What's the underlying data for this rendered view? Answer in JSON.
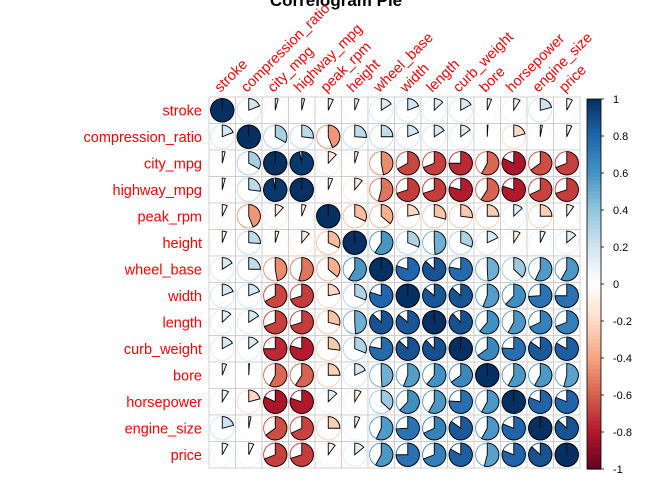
{
  "chart_data": {
    "type": "heatmap",
    "style": "pie",
    "title": "Correlogram Pie",
    "variables": [
      "stroke",
      "compression_ratio",
      "city_mpg",
      "highway_mpg",
      "peak_rpm",
      "height",
      "wheel_base",
      "width",
      "length",
      "curb_weight",
      "bore",
      "horsepower",
      "engine_size",
      "price"
    ],
    "matrix": [
      [
        1.0,
        0.19,
        -0.04,
        -0.04,
        -0.07,
        -0.06,
        0.16,
        0.19,
        0.13,
        0.17,
        -0.06,
        0.09,
        0.21,
        0.08
      ],
      [
        0.19,
        1.0,
        0.33,
        0.27,
        -0.44,
        0.26,
        0.25,
        0.19,
        0.16,
        0.15,
        0.01,
        -0.21,
        0.03,
        0.07
      ],
      [
        -0.04,
        0.33,
        1.0,
        0.97,
        -0.12,
        -0.05,
        -0.47,
        -0.67,
        -0.69,
        -0.75,
        -0.58,
        -0.82,
        -0.65,
        -0.69
      ],
      [
        -0.04,
        0.27,
        0.97,
        1.0,
        -0.06,
        -0.11,
        -0.54,
        -0.7,
        -0.7,
        -0.79,
        -0.59,
        -0.8,
        -0.68,
        -0.7
      ],
      [
        -0.07,
        -0.44,
        -0.12,
        -0.06,
        1.0,
        -0.32,
        -0.36,
        -0.22,
        -0.29,
        -0.27,
        -0.25,
        0.13,
        -0.25,
        -0.1
      ],
      [
        -0.06,
        0.26,
        -0.05,
        -0.11,
        -0.32,
        1.0,
        0.59,
        0.31,
        0.49,
        0.31,
        0.18,
        -0.09,
        0.07,
        0.14
      ],
      [
        0.16,
        0.25,
        -0.47,
        -0.54,
        -0.36,
        0.59,
        1.0,
        0.8,
        0.87,
        0.78,
        0.49,
        0.37,
        0.57,
        0.58
      ],
      [
        0.19,
        0.19,
        -0.67,
        -0.7,
        -0.22,
        0.31,
        0.8,
        1.0,
        0.86,
        0.87,
        0.56,
        0.62,
        0.74,
        0.75
      ],
      [
        0.13,
        0.16,
        -0.69,
        -0.7,
        -0.29,
        0.49,
        0.87,
        0.86,
        1.0,
        0.88,
        0.61,
        0.58,
        0.68,
        0.69
      ],
      [
        0.17,
        0.15,
        -0.75,
        -0.79,
        -0.27,
        0.31,
        0.78,
        0.87,
        0.88,
        1.0,
        0.65,
        0.76,
        0.85,
        0.83
      ],
      [
        -0.06,
        0.01,
        -0.58,
        -0.59,
        -0.25,
        0.18,
        0.49,
        0.56,
        0.61,
        0.65,
        1.0,
        0.58,
        0.58,
        0.54
      ],
      [
        0.09,
        -0.21,
        -0.82,
        -0.8,
        0.13,
        -0.09,
        0.37,
        0.62,
        0.58,
        0.76,
        0.58,
        1.0,
        0.81,
        0.81
      ],
      [
        0.21,
        0.03,
        -0.65,
        -0.68,
        -0.25,
        0.07,
        0.57,
        0.74,
        0.68,
        0.85,
        0.58,
        0.81,
        1.0,
        0.87
      ],
      [
        0.08,
        0.07,
        -0.69,
        -0.7,
        -0.1,
        0.14,
        0.58,
        0.75,
        0.69,
        0.83,
        0.54,
        0.81,
        0.87,
        1.0
      ]
    ],
    "colorbar": {
      "range": [
        -1,
        1
      ],
      "ticks": [
        "1",
        "0.8",
        "0.6",
        "0.4",
        "0.2",
        "0",
        "-0.2",
        "-0.4",
        "-0.6",
        "-0.8",
        "-1"
      ]
    },
    "palette": {
      "negative_strong": "#67001f",
      "negative_mid": "#d6604d",
      "neutral": "#ffffff",
      "positive_mid": "#4393c3",
      "positive_strong": "#053061",
      "label_color": "#ff0000"
    }
  }
}
